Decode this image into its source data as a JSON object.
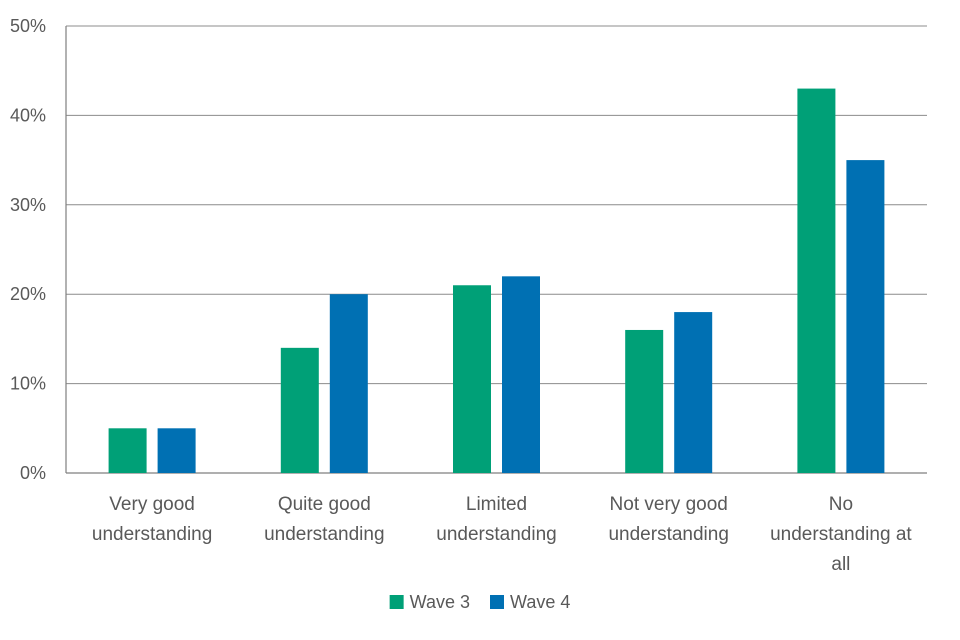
{
  "chart_data": {
    "type": "bar",
    "categories": [
      [
        "Very good",
        "understanding"
      ],
      [
        "Quite good",
        "understanding"
      ],
      [
        "Limited",
        "understanding"
      ],
      [
        "Not very good",
        "understanding"
      ],
      [
        "No",
        "understanding at",
        "all"
      ]
    ],
    "series": [
      {
        "name": "Wave 3",
        "color": "#00A077",
        "values": [
          5,
          14,
          21,
          16,
          43
        ]
      },
      {
        "name": "Wave 4",
        "color": "#0070B3",
        "values": [
          5,
          20,
          22,
          18,
          35
        ]
      }
    ],
    "y_ticks": [
      "0%",
      "10%",
      "20%",
      "30%",
      "40%",
      "50%"
    ],
    "ylim": [
      0,
      50
    ],
    "grid": true,
    "legend_position": "bottom-center"
  }
}
